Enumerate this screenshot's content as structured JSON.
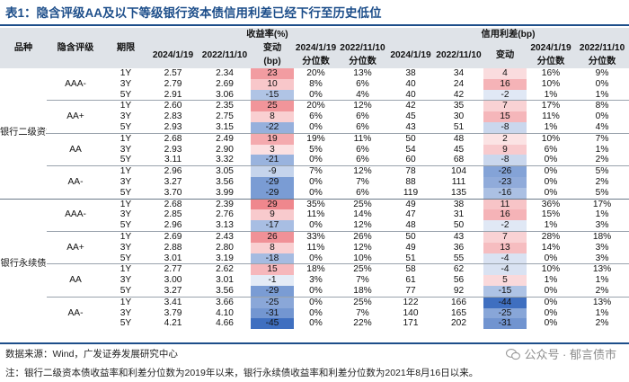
{
  "title": "表1：隐含评级AA及以下等级银行资本债信用利差已经下行至历史低位",
  "header": {
    "col_product": "品种",
    "col_rating": "隐含评级",
    "col_tenor": "期限",
    "yield_group": "收益率(%)",
    "spread_group": "信用利差(bp)",
    "date1": "2024/1/19",
    "date2": "2022/11/10",
    "change": "变动",
    "change_unit": "(bp)",
    "pct1": "2024/1/19",
    "pct2": "2022/11/10",
    "pct_label": "分位数"
  },
  "products": [
    "银行二级资本债",
    "银行永续债"
  ],
  "rows": [
    {
      "p": 0,
      "r": "AAA-",
      "t": "1Y",
      "y1": "2.57",
      "y2": "2.34",
      "yc": "23",
      "yp1": "20%",
      "yp2": "13%",
      "s1": "38",
      "s2": "34",
      "sc": "4",
      "sp1": "16%",
      "sp2": "9%"
    },
    {
      "p": 0,
      "r": "",
      "t": "3Y",
      "y1": "2.79",
      "y2": "2.69",
      "yc": "10",
      "yp1": "8%",
      "yp2": "6%",
      "s1": "40",
      "s2": "24",
      "sc": "16",
      "sp1": "10%",
      "sp2": "0%"
    },
    {
      "p": 0,
      "r": "",
      "t": "5Y",
      "y1": "2.91",
      "y2": "3.06",
      "yc": "-15",
      "yp1": "0%",
      "yp2": "4%",
      "s1": "40",
      "s2": "42",
      "sc": "-2",
      "sp1": "1%",
      "sp2": "1%"
    },
    {
      "p": 0,
      "r": "AA+",
      "t": "1Y",
      "y1": "2.60",
      "y2": "2.35",
      "yc": "25",
      "yp1": "20%",
      "yp2": "12%",
      "s1": "42",
      "s2": "35",
      "sc": "7",
      "sp1": "17%",
      "sp2": "8%"
    },
    {
      "p": 0,
      "r": "",
      "t": "3Y",
      "y1": "2.83",
      "y2": "2.75",
      "yc": "8",
      "yp1": "6%",
      "yp2": "6%",
      "s1": "45",
      "s2": "30",
      "sc": "15",
      "sp1": "11%",
      "sp2": "0%"
    },
    {
      "p": 0,
      "r": "",
      "t": "5Y",
      "y1": "2.93",
      "y2": "3.15",
      "yc": "-22",
      "yp1": "0%",
      "yp2": "6%",
      "s1": "43",
      "s2": "51",
      "sc": "-8",
      "sp1": "1%",
      "sp2": "4%"
    },
    {
      "p": 0,
      "r": "AA",
      "t": "1Y",
      "y1": "2.68",
      "y2": "2.49",
      "yc": "19",
      "yp1": "19%",
      "yp2": "11%",
      "s1": "50",
      "s2": "48",
      "sc": "2",
      "sp1": "10%",
      "sp2": "7%"
    },
    {
      "p": 0,
      "r": "",
      "t": "3Y",
      "y1": "2.93",
      "y2": "2.90",
      "yc": "3",
      "yp1": "5%",
      "yp2": "6%",
      "s1": "54",
      "s2": "45",
      "sc": "9",
      "sp1": "6%",
      "sp2": "1%"
    },
    {
      "p": 0,
      "r": "",
      "t": "5Y",
      "y1": "3.11",
      "y2": "3.32",
      "yc": "-21",
      "yp1": "0%",
      "yp2": "6%",
      "s1": "60",
      "s2": "68",
      "sc": "-8",
      "sp1": "0%",
      "sp2": "2%"
    },
    {
      "p": 0,
      "r": "AA-",
      "t": "1Y",
      "y1": "2.96",
      "y2": "3.05",
      "yc": "-9",
      "yp1": "7%",
      "yp2": "12%",
      "s1": "78",
      "s2": "104",
      "sc": "-26",
      "sp1": "0%",
      "sp2": "5%"
    },
    {
      "p": 0,
      "r": "",
      "t": "3Y",
      "y1": "3.27",
      "y2": "3.56",
      "yc": "-29",
      "yp1": "0%",
      "yp2": "7%",
      "s1": "88",
      "s2": "111",
      "sc": "-23",
      "sp1": "0%",
      "sp2": "2%"
    },
    {
      "p": 0,
      "r": "",
      "t": "5Y",
      "y1": "3.70",
      "y2": "3.99",
      "yc": "-29",
      "yp1": "0%",
      "yp2": "6%",
      "s1": "119",
      "s2": "135",
      "sc": "-16",
      "sp1": "0%",
      "sp2": "5%"
    },
    {
      "p": 1,
      "r": "AAA-",
      "t": "1Y",
      "y1": "2.68",
      "y2": "2.39",
      "yc": "29",
      "yp1": "35%",
      "yp2": "25%",
      "s1": "49",
      "s2": "38",
      "sc": "11",
      "sp1": "36%",
      "sp2": "17%"
    },
    {
      "p": 1,
      "r": "",
      "t": "3Y",
      "y1": "2.85",
      "y2": "2.76",
      "yc": "9",
      "yp1": "11%",
      "yp2": "14%",
      "s1": "47",
      "s2": "31",
      "sc": "16",
      "sp1": "15%",
      "sp2": "1%"
    },
    {
      "p": 1,
      "r": "",
      "t": "5Y",
      "y1": "2.96",
      "y2": "3.13",
      "yc": "-17",
      "yp1": "0%",
      "yp2": "12%",
      "s1": "48",
      "s2": "50",
      "sc": "-2",
      "sp1": "1%",
      "sp2": "3%"
    },
    {
      "p": 1,
      "r": "AA+",
      "t": "1Y",
      "y1": "2.69",
      "y2": "2.43",
      "yc": "26",
      "yp1": "33%",
      "yp2": "26%",
      "s1": "50",
      "s2": "43",
      "sc": "7",
      "sp1": "28%",
      "sp2": "18%"
    },
    {
      "p": 1,
      "r": "",
      "t": "3Y",
      "y1": "2.88",
      "y2": "2.80",
      "yc": "8",
      "yp1": "11%",
      "yp2": "12%",
      "s1": "49",
      "s2": "36",
      "sc": "13",
      "sp1": "14%",
      "sp2": "3%"
    },
    {
      "p": 1,
      "r": "",
      "t": "5Y",
      "y1": "3.01",
      "y2": "3.19",
      "yc": "-18",
      "yp1": "0%",
      "yp2": "10%",
      "s1": "51",
      "s2": "55",
      "sc": "-4",
      "sp1": "0%",
      "sp2": "3%"
    },
    {
      "p": 1,
      "r": "AA",
      "t": "1Y",
      "y1": "2.77",
      "y2": "2.62",
      "yc": "15",
      "yp1": "18%",
      "yp2": "25%",
      "s1": "58",
      "s2": "62",
      "sc": "-4",
      "sp1": "10%",
      "sp2": "13%"
    },
    {
      "p": 1,
      "r": "",
      "t": "3Y",
      "y1": "3.00",
      "y2": "3.01",
      "yc": "-1",
      "yp1": "3%",
      "yp2": "7%",
      "s1": "61",
      "s2": "56",
      "sc": "5",
      "sp1": "1%",
      "sp2": "1%"
    },
    {
      "p": 1,
      "r": "",
      "t": "5Y",
      "y1": "3.27",
      "y2": "3.56",
      "yc": "-29",
      "yp1": "0%",
      "yp2": "18%",
      "s1": "77",
      "s2": "92",
      "sc": "-15",
      "sp1": "0%",
      "sp2": "2%"
    },
    {
      "p": 1,
      "r": "AA-",
      "t": "1Y",
      "y1": "3.41",
      "y2": "3.66",
      "yc": "-25",
      "yp1": "0%",
      "yp2": "25%",
      "s1": "122",
      "s2": "166",
      "sc": "-44",
      "sp1": "0%",
      "sp2": "13%"
    },
    {
      "p": 1,
      "r": "",
      "t": "3Y",
      "y1": "3.79",
      "y2": "4.10",
      "yc": "-31",
      "yp1": "0%",
      "yp2": "7%",
      "s1": "140",
      "s2": "165",
      "sc": "-25",
      "sp1": "0%",
      "sp2": "1%"
    },
    {
      "p": 1,
      "r": "",
      "t": "5Y",
      "y1": "4.21",
      "y2": "4.66",
      "yc": "-45",
      "yp1": "0%",
      "yp2": "22%",
      "s1": "171",
      "s2": "202",
      "sc": "-31",
      "sp1": "0%",
      "sp2": "2%"
    }
  ],
  "colors": {
    "title": "#1d4e8a",
    "header_bg": "#dfe3e8",
    "pos": "#e8515a",
    "neg": "#3f6fc0"
  },
  "source": "数据来源：Wind，广发证券发展研究中心",
  "note": "注：银行二级资本债收益率和利差分位数为2019年以来，银行永续债收益率和利差分位数为2021年8月16日以来。",
  "watermark": "公众号 · 郁言债市"
}
